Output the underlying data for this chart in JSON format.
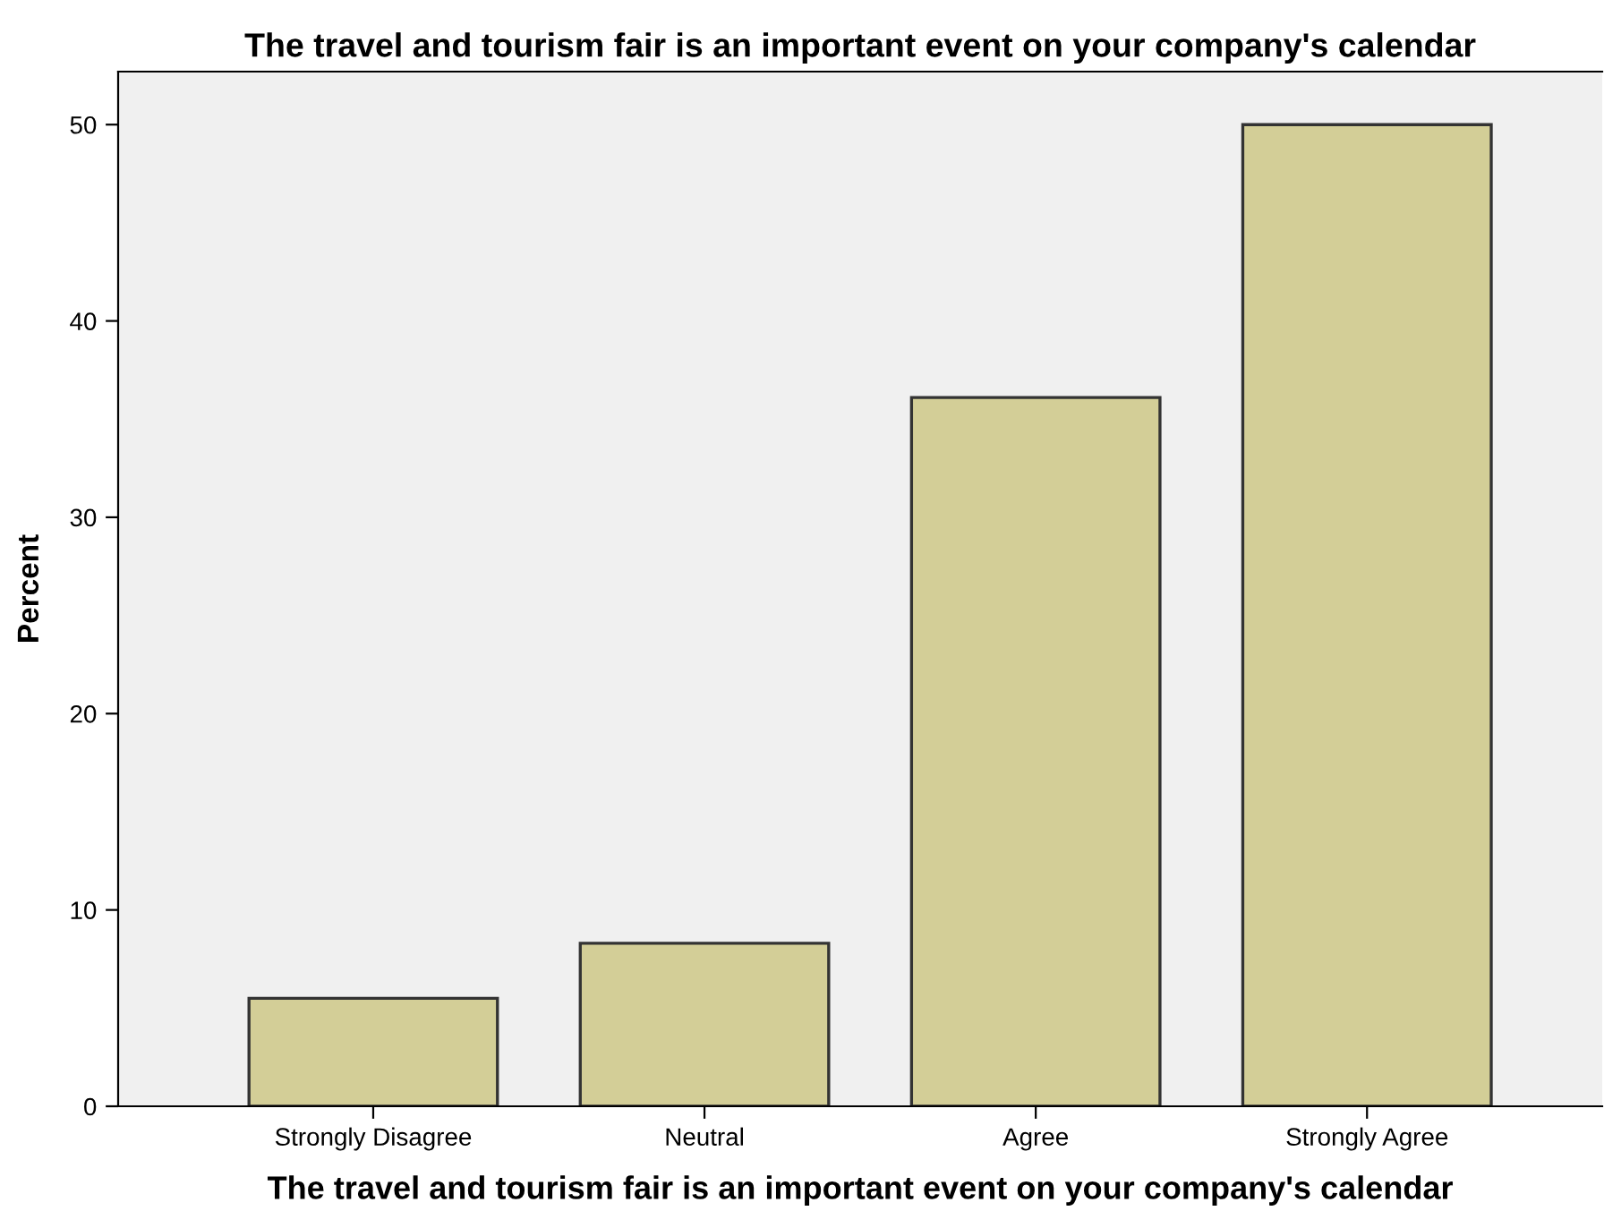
{
  "chart_data": {
    "type": "bar",
    "title": "The travel and tourism fair is an important event on your company's calendar",
    "xlabel": "The travel and tourism fair is an important event on your company's calendar",
    "ylabel": "Percent",
    "categories": [
      "Strongly Disagree",
      "Neutral",
      "Agree",
      "Strongly Agree"
    ],
    "values": [
      5.5,
      8.3,
      36.1,
      50.0
    ],
    "color": "#d3ce97",
    "ylim": [
      0,
      52.7
    ],
    "yticks": [
      0,
      10,
      20,
      30,
      40,
      50
    ],
    "grid": false
  }
}
